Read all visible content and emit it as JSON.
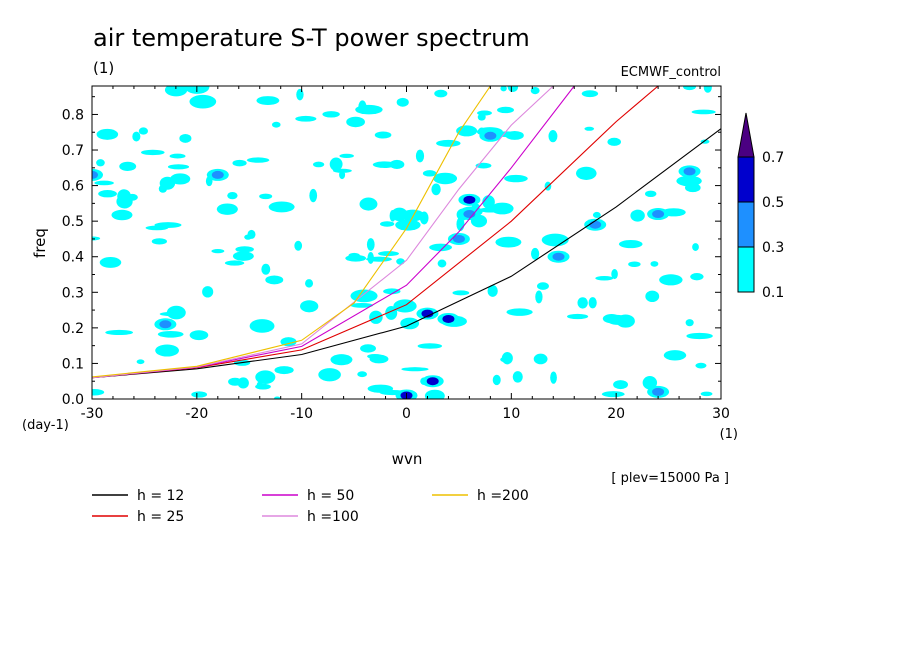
{
  "chart_data": {
    "type": "contour",
    "title": "air temperature S-T power spectrum",
    "y_units_label": "(1)",
    "x_units_label": "(1)",
    "y_units_corner": "(day-1)",
    "dataset": "ECMWF_control",
    "level": "[ plev=15000 Pa ]",
    "xlabel": "wvn",
    "ylabel": "freq",
    "xlim": [
      -30,
      30
    ],
    "ylim": [
      0,
      0.88
    ],
    "x_ticks": [
      "-30",
      "-20",
      "-10",
      "0",
      "10",
      "20",
      "30"
    ],
    "y_ticks": [
      "0.0",
      "0.1",
      "0.2",
      "0.3",
      "0.4",
      "0.5",
      "0.6",
      "0.7",
      "0.8"
    ],
    "colorbar": {
      "levels": [
        "0.1",
        "0.3",
        "0.5",
        "0.7"
      ],
      "colors": [
        "#00ffff",
        "#1e90ff",
        "#0000cd",
        "#4b0082"
      ]
    },
    "series": [
      {
        "name": "h = 12",
        "color": "#000000",
        "h": 12,
        "x": [
          -30,
          -20,
          -10,
          0,
          10,
          20,
          30
        ],
        "y": [
          0.06,
          0.085,
          0.125,
          0.205,
          0.345,
          0.54,
          0.76
        ]
      },
      {
        "name": "h = 25",
        "color": "#e00000",
        "h": 25,
        "x": [
          -30,
          -20,
          -10,
          0,
          10,
          20,
          24
        ],
        "y": [
          0.06,
          0.088,
          0.138,
          0.265,
          0.5,
          0.78,
          0.88
        ]
      },
      {
        "name": "h = 50",
        "color": "#cc00cc",
        "h": 50,
        "x": [
          -30,
          -20,
          -10,
          0,
          5,
          10,
          16
        ],
        "y": [
          0.06,
          0.089,
          0.148,
          0.32,
          0.47,
          0.65,
          0.88
        ]
      },
      {
        "name": "h =100",
        "color": "#dd88dd",
        "h": 100,
        "x": [
          -30,
          -20,
          -10,
          0,
          5,
          10,
          14
        ],
        "y": [
          0.06,
          0.09,
          0.155,
          0.39,
          0.59,
          0.77,
          0.88
        ]
      },
      {
        "name": "h =200",
        "color": "#eec000",
        "h": 200,
        "x": [
          -30,
          -20,
          -10,
          -5,
          0,
          5,
          8
        ],
        "y": [
          0.062,
          0.092,
          0.165,
          0.27,
          0.48,
          0.75,
          0.88
        ]
      }
    ],
    "features": [
      {
        "x": 0,
        "y": 0.01,
        "level": 0.5
      },
      {
        "x": 4,
        "y": 0.225,
        "level": 0.5
      },
      {
        "x": 2,
        "y": 0.24,
        "level": 0.5
      },
      {
        "x": 2.5,
        "y": 0.05,
        "level": 0.5
      },
      {
        "x": 6,
        "y": 0.56,
        "level": 0.5
      },
      {
        "x": 5,
        "y": 0.45,
        "level": 0.3
      },
      {
        "x": 8,
        "y": 0.74,
        "level": 0.3
      },
      {
        "x": 14.5,
        "y": 0.4,
        "level": 0.3
      },
      {
        "x": 18,
        "y": 0.49,
        "level": 0.3
      },
      {
        "x": 24,
        "y": 0.52,
        "level": 0.3
      },
      {
        "x": 27,
        "y": 0.64,
        "level": 0.3
      },
      {
        "x": 6,
        "y": 0.52,
        "level": 0.3
      },
      {
        "x": -18,
        "y": 0.63,
        "level": 0.3
      },
      {
        "x": -23,
        "y": 0.21,
        "level": 0.3
      },
      {
        "x": 24,
        "y": 0.02,
        "level": 0.3
      },
      {
        "x": -30,
        "y": 0.63,
        "level": 0.3
      }
    ]
  }
}
